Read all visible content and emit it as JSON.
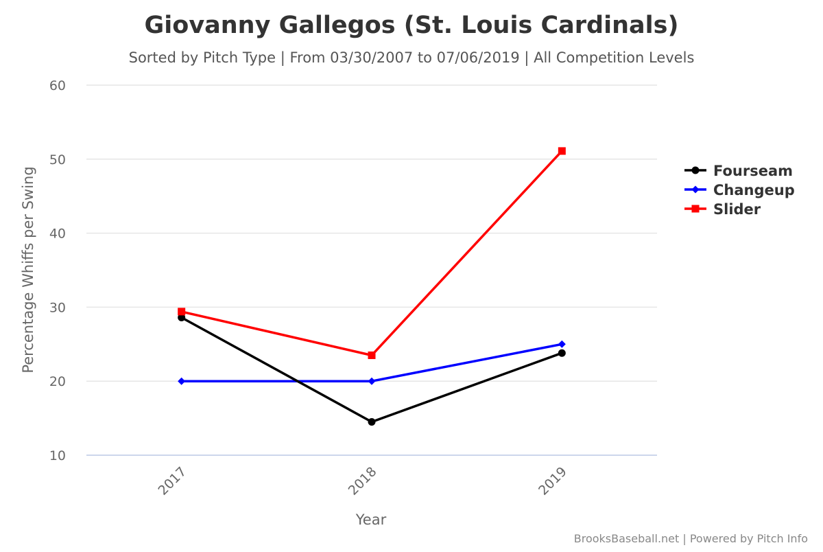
{
  "chart_data": {
    "type": "line",
    "title": "Giovanny Gallegos (St. Louis Cardinals)",
    "subtitle": "Sorted by Pitch Type | From 03/30/2007 to 07/06/2019 | All Competition Levels",
    "xlabel": "Year",
    "ylabel": "Percentage Whiffs per Swing",
    "categories": [
      "2017",
      "2018",
      "2019"
    ],
    "ylim": [
      10,
      60
    ],
    "yticks": [
      10,
      20,
      30,
      40,
      50,
      60
    ],
    "grid": true,
    "legend_position": "right",
    "series": [
      {
        "name": "Fourseam",
        "color": "#000000",
        "marker": "circle",
        "values": [
          28.6,
          14.5,
          23.8
        ]
      },
      {
        "name": "Changeup",
        "color": "#0000ff",
        "marker": "diamond",
        "values": [
          20.0,
          20.0,
          25.0
        ]
      },
      {
        "name": "Slider",
        "color": "#ff0000",
        "marker": "square",
        "values": [
          29.4,
          23.5,
          51.1
        ]
      }
    ],
    "credits": "BrooksBaseball.net | Powered by Pitch Info"
  }
}
